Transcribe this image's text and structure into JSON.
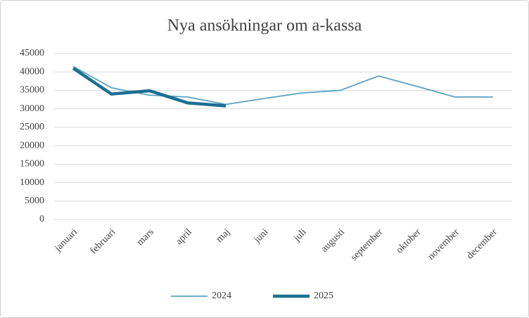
{
  "chart_data": {
    "type": "line",
    "title": "Nya ansökningar  om a-kassa",
    "categories": [
      "januari",
      "februari",
      "mars",
      "april",
      "maj",
      "juni",
      "juli",
      "augusti",
      "september",
      "oktober",
      "november",
      "december"
    ],
    "series": [
      {
        "name": "2024",
        "color": "#5ba3c0",
        "values": [
          41500,
          35700,
          33700,
          33200,
          31200,
          32800,
          34300,
          35000,
          38900,
          36100,
          33200,
          33200
        ]
      },
      {
        "name": "2025",
        "color": "#1b6f93",
        "values": [
          41000,
          34000,
          34900,
          31600,
          30800,
          null,
          null,
          null,
          null,
          null,
          null,
          null
        ]
      }
    ],
    "ylim": [
      0,
      45000
    ],
    "yticks": [
      0,
      5000,
      10000,
      15000,
      20000,
      25000,
      30000,
      35000,
      40000,
      45000
    ],
    "grid": true,
    "legend": "bottom"
  }
}
